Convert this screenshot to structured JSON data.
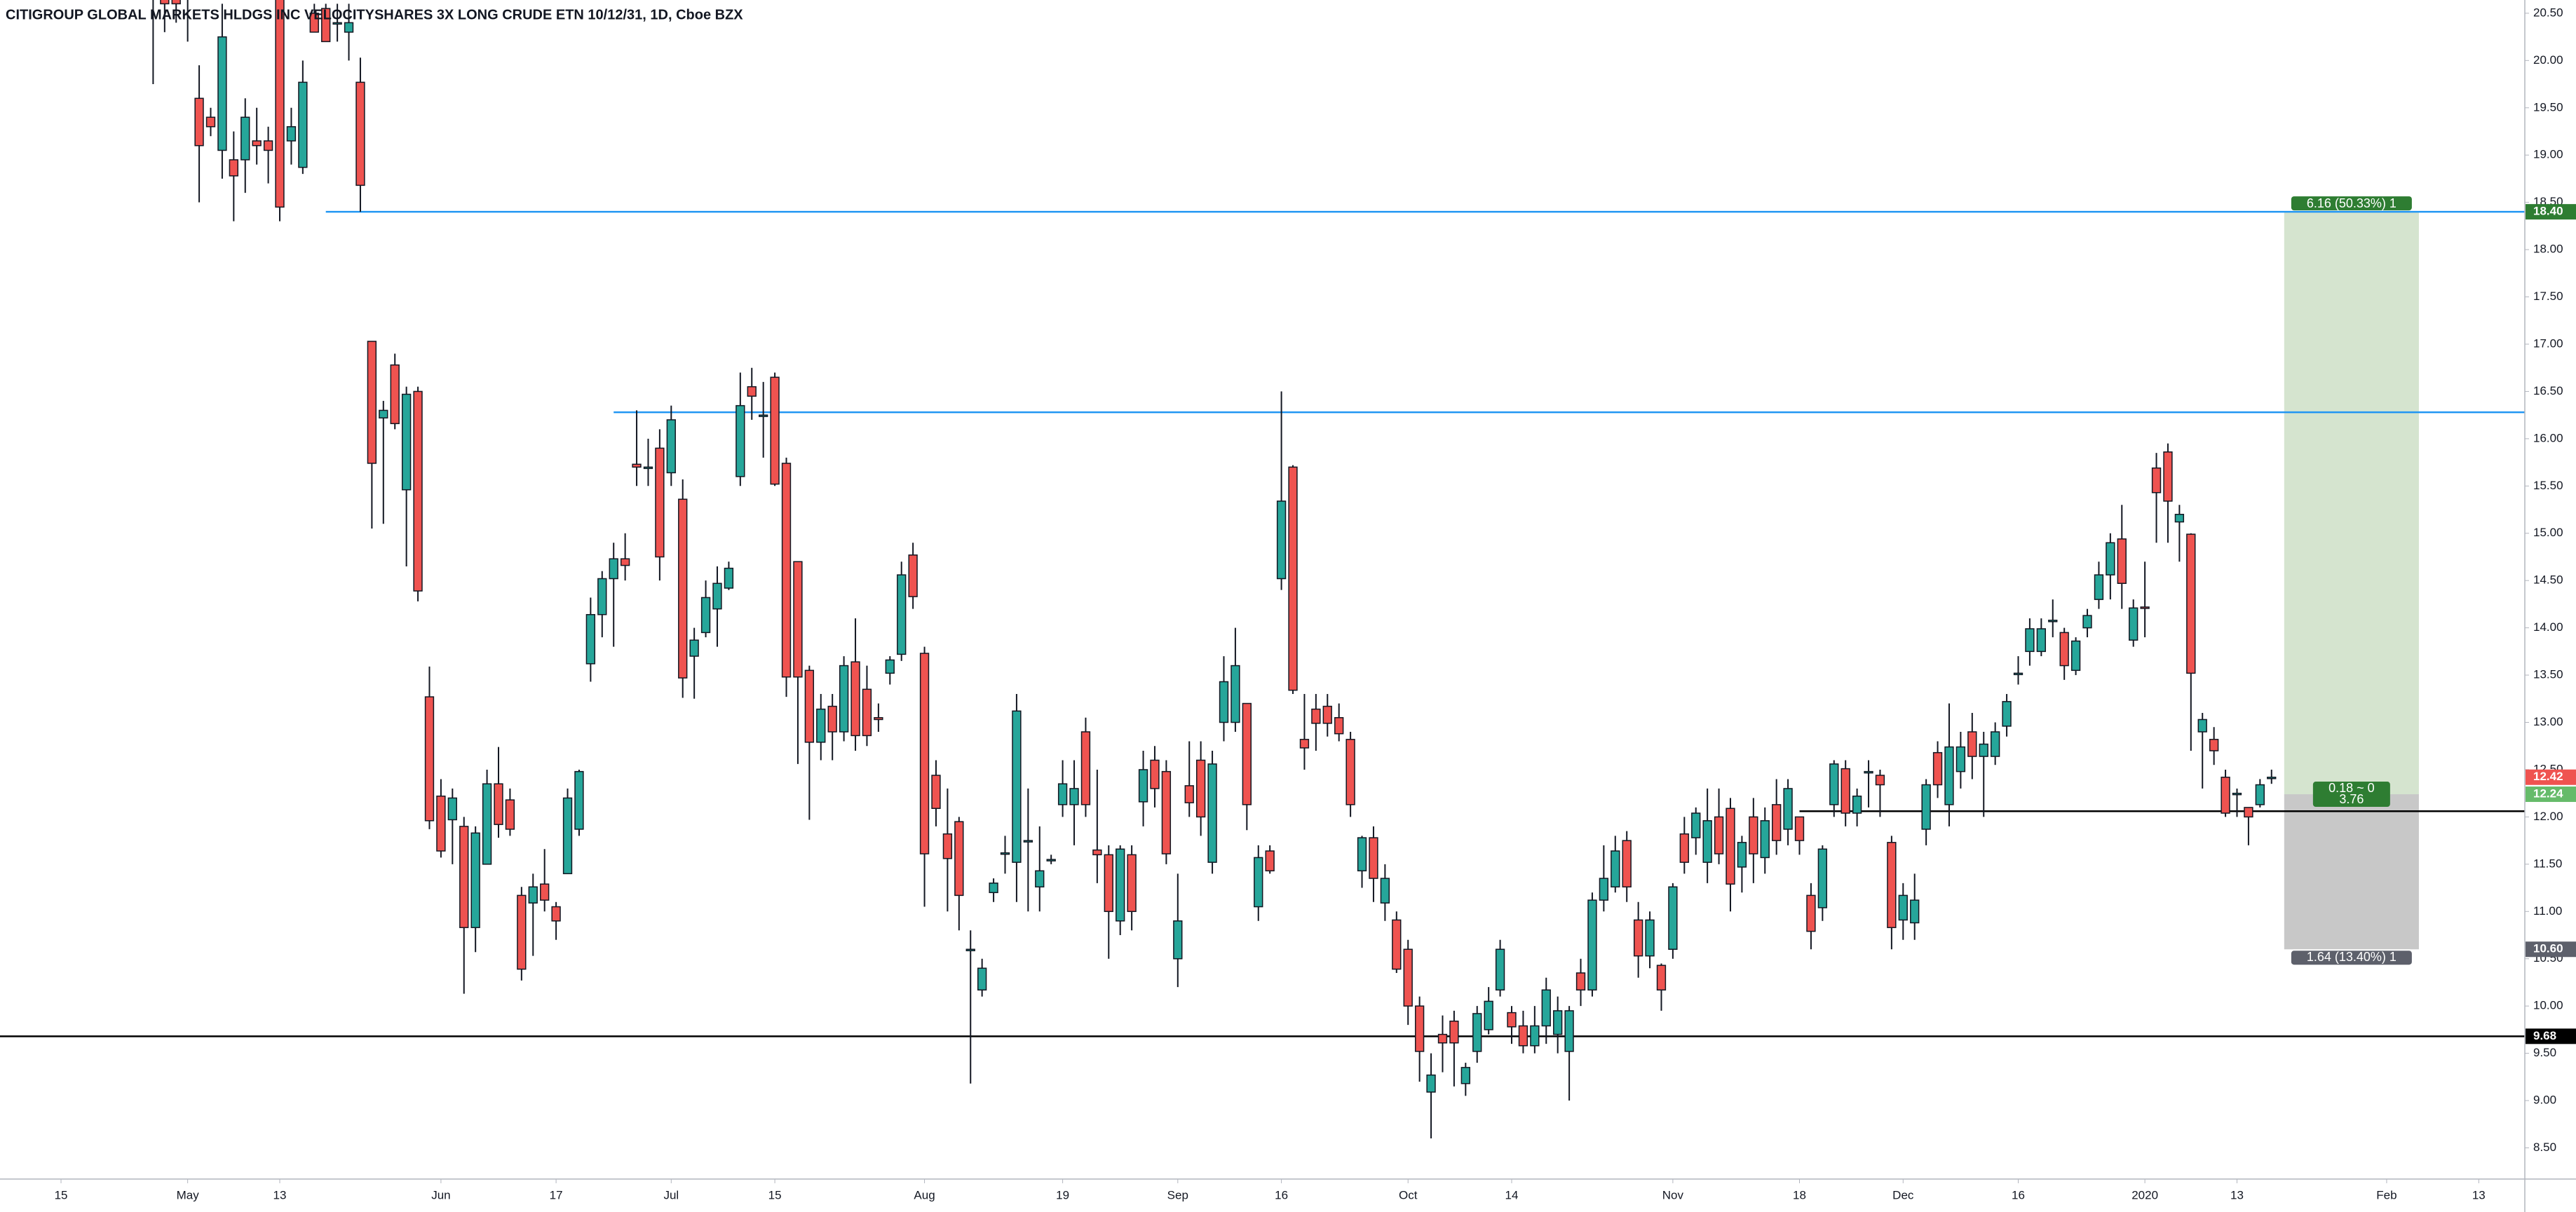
{
  "chart_data": {
    "type": "candlestick",
    "title": "CITIGROUP GLOBAL MARKETS HLDGS INC VELOCITYSHARES 3X LONG CRUDE ETN 10/12/31, 1D, Cboe BZX",
    "up_color": "#26a69a",
    "down_color": "#ef5350",
    "candles": {
      "open": [
        20.9,
        20.8,
        20.7,
        20.9,
        19.6,
        19.4,
        19.05,
        18.95,
        18.95,
        19.15,
        19.15,
        20.8,
        19.15,
        18.87,
        20.5,
        20.55,
        20.4,
        20.3,
        19.77,
        17.03,
        16.22,
        16.78,
        15.46,
        16.5,
        13.27,
        12.22,
        11.97,
        11.9,
        10.83,
        11.5,
        12.35,
        12.18,
        11.17,
        11.09,
        11.29,
        11.05,
        11.4,
        11.87,
        13.62,
        14.14,
        14.52,
        14.73,
        15.73,
        15.7,
        15.9,
        15.64,
        15.36,
        13.7,
        13.95,
        14.2,
        14.42,
        15.6,
        16.55,
        16.25,
        16.65,
        15.74,
        14.7,
        13.55,
        12.79,
        13.17,
        12.9,
        13.64,
        13.35,
        13.05,
        13.52,
        13.72,
        14.77,
        13.73,
        12.44,
        11.82,
        11.95,
        10.6,
        10.17,
        11.2,
        11.62,
        11.52,
        11.75,
        11.26,
        11.55,
        12.13,
        12.13,
        12.9,
        11.65,
        11.6,
        10.9,
        11.6,
        12.16,
        12.6,
        12.48,
        10.5,
        12.33,
        12.6,
        11.52,
        13.0,
        13.0,
        13.2,
        11.05,
        11.64,
        14.52,
        15.7,
        12.82,
        13.14,
        13.17,
        13.05,
        12.82,
        11.43,
        11.78,
        11.09,
        10.91,
        10.6,
        10.0,
        9.09,
        9.7,
        9.84,
        9.18,
        9.52,
        9.75,
        10.17,
        9.93,
        9.79,
        9.58,
        9.79,
        9.7,
        9.52,
        10.35,
        10.17,
        11.12,
        11.26,
        11.75,
        10.91,
        10.53,
        10.43,
        10.6,
        11.82,
        11.78,
        11.52,
        12.0,
        12.09,
        11.47,
        12.0,
        11.57,
        12.13,
        11.87,
        12.0,
        11.17,
        11.04,
        12.13,
        12.51,
        12.04,
        12.48,
        12.44,
        11.73,
        10.91,
        10.88,
        11.87,
        12.68,
        12.13,
        12.48,
        12.9,
        12.64,
        12.64,
        12.96,
        13.52,
        13.75,
        13.75,
        14.07,
        13.95,
        13.55,
        14.0,
        14.3,
        14.56,
        14.94,
        13.87,
        14.22,
        15.69,
        15.86,
        15.12,
        14.99,
        12.9,
        12.82,
        12.42,
        12.25,
        12.1,
        12.13,
        12.42
      ],
      "high": [
        21.0,
        21.0,
        21.0,
        21.0,
        19.95,
        19.5,
        20.6,
        19.25,
        19.6,
        19.5,
        19.3,
        21.0,
        19.5,
        20.0,
        20.6,
        20.6,
        20.6,
        20.6,
        20.03,
        17.03,
        16.4,
        16.9,
        16.55,
        16.55,
        13.59,
        12.4,
        12.3,
        12.0,
        11.9,
        12.5,
        12.74,
        12.3,
        11.26,
        11.4,
        11.66,
        11.1,
        12.3,
        12.5,
        14.32,
        14.6,
        14.9,
        15.0,
        16.3,
        16.0,
        16.1,
        16.35,
        15.57,
        14.0,
        14.5,
        14.65,
        14.7,
        16.7,
        16.75,
        16.6,
        16.7,
        15.8,
        14.7,
        13.6,
        13.3,
        13.3,
        13.7,
        14.1,
        13.6,
        13.2,
        13.7,
        14.7,
        14.9,
        13.8,
        12.6,
        12.3,
        12.0,
        10.8,
        10.5,
        11.35,
        11.8,
        13.3,
        12.3,
        11.9,
        11.6,
        12.6,
        12.6,
        13.05,
        12.5,
        11.7,
        11.7,
        11.7,
        12.7,
        12.75,
        12.6,
        11.4,
        12.8,
        12.8,
        12.7,
        13.7,
        14.0,
        13.2,
        11.7,
        11.7,
        16.5,
        15.72,
        13.3,
        13.3,
        13.3,
        13.2,
        12.9,
        11.8,
        11.9,
        11.5,
        11.0,
        10.7,
        10.1,
        9.5,
        9.9,
        9.95,
        9.4,
        10.0,
        10.2,
        10.7,
        10.0,
        9.95,
        10.0,
        10.3,
        10.1,
        10.0,
        10.5,
        11.2,
        11.7,
        11.8,
        11.85,
        11.1,
        11.0,
        10.45,
        11.3,
        12.0,
        12.1,
        12.3,
        12.3,
        12.2,
        11.8,
        12.2,
        12.1,
        12.4,
        12.4,
        12.0,
        11.3,
        11.7,
        12.6,
        12.6,
        12.3,
        12.6,
        12.5,
        11.8,
        11.3,
        11.4,
        12.4,
        12.8,
        13.2,
        12.9,
        13.1,
        12.9,
        13.0,
        13.3,
        13.7,
        14.1,
        14.1,
        14.3,
        14.0,
        13.9,
        14.2,
        14.7,
        15.0,
        15.3,
        14.3,
        14.7,
        15.85,
        15.95,
        15.3,
        15.0,
        13.1,
        12.95,
        12.5,
        12.3,
        12.1,
        12.4,
        12.5
      ],
      "low": [
        19.75,
        20.3,
        20.4,
        20.2,
        18.5,
        19.2,
        18.75,
        18.3,
        18.6,
        18.9,
        18.7,
        18.3,
        18.9,
        18.8,
        20.3,
        20.2,
        20.2,
        20.0,
        18.4,
        15.05,
        15.1,
        16.1,
        14.65,
        14.28,
        11.87,
        11.57,
        11.5,
        10.13,
        10.57,
        11.5,
        11.78,
        11.8,
        10.27,
        10.53,
        11.0,
        10.7,
        11.4,
        11.8,
        13.43,
        13.9,
        13.8,
        14.5,
        15.5,
        15.5,
        14.5,
        15.5,
        13.26,
        13.25,
        13.9,
        13.8,
        14.4,
        15.5,
        16.2,
        15.8,
        15.5,
        13.27,
        12.56,
        11.97,
        12.6,
        12.6,
        12.8,
        12.7,
        12.75,
        12.9,
        13.4,
        13.65,
        14.2,
        11.05,
        11.9,
        11.0,
        10.8,
        9.18,
        10.1,
        11.1,
        11.4,
        11.1,
        11.0,
        11.0,
        11.5,
        12.0,
        11.7,
        12.0,
        11.3,
        10.5,
        10.75,
        10.8,
        11.9,
        12.1,
        11.5,
        10.2,
        12.0,
        11.8,
        11.4,
        12.8,
        12.9,
        11.86,
        10.9,
        11.4,
        14.4,
        13.3,
        12.5,
        12.7,
        12.85,
        12.8,
        12.0,
        11.25,
        11.1,
        10.9,
        10.35,
        9.8,
        9.2,
        8.6,
        9.3,
        9.15,
        9.05,
        9.4,
        9.7,
        10.1,
        9.6,
        9.5,
        9.5,
        9.6,
        9.5,
        9.0,
        10.0,
        10.1,
        11.0,
        11.2,
        11.1,
        10.3,
        10.4,
        9.95,
        10.5,
        11.4,
        11.6,
        11.3,
        11.5,
        11.0,
        11.2,
        11.3,
        11.4,
        11.6,
        11.7,
        11.6,
        10.6,
        10.9,
        12.0,
        11.9,
        11.9,
        12.1,
        12.0,
        10.6,
        10.7,
        10.7,
        11.7,
        12.2,
        11.9,
        12.3,
        12.4,
        12.0,
        12.55,
        12.85,
        13.4,
        13.6,
        13.7,
        13.9,
        13.45,
        13.5,
        13.9,
        14.2,
        14.3,
        14.2,
        13.8,
        13.9,
        14.9,
        14.9,
        14.7,
        12.7,
        12.3,
        12.55,
        12.0,
        12.0,
        11.7,
        12.1,
        12.35
      ],
      "close": [
        20.7,
        20.6,
        20.6,
        20.7,
        19.1,
        19.3,
        20.25,
        18.78,
        19.4,
        19.1,
        19.05,
        18.45,
        19.3,
        19.77,
        20.3,
        20.2,
        20.4,
        20.4,
        18.68,
        15.74,
        16.3,
        16.16,
        16.47,
        14.39,
        11.96,
        11.64,
        12.2,
        10.83,
        11.83,
        12.35,
        11.92,
        11.87,
        10.39,
        11.26,
        11.12,
        10.9,
        12.2,
        12.48,
        14.14,
        14.52,
        14.73,
        14.66,
        15.7,
        15.7,
        14.75,
        16.2,
        13.47,
        13.87,
        14.32,
        14.47,
        14.63,
        16.35,
        16.45,
        16.25,
        15.52,
        13.48,
        13.48,
        12.79,
        13.14,
        12.9,
        13.6,
        12.86,
        12.86,
        13.03,
        13.66,
        14.56,
        14.33,
        11.61,
        12.09,
        11.56,
        11.17,
        10.6,
        10.4,
        11.3,
        11.62,
        13.12,
        11.75,
        11.43,
        11.55,
        12.35,
        12.3,
        12.13,
        11.6,
        11.0,
        11.66,
        11.0,
        12.5,
        12.3,
        11.61,
        10.9,
        12.15,
        12.0,
        12.56,
        13.43,
        13.6,
        12.13,
        11.57,
        11.43,
        15.34,
        13.34,
        12.73,
        12.99,
        12.99,
        12.88,
        12.13,
        11.78,
        11.35,
        11.35,
        10.39,
        10.0,
        9.52,
        9.27,
        9.61,
        9.61,
        9.35,
        9.92,
        10.05,
        10.6,
        9.78,
        9.58,
        9.79,
        10.17,
        9.95,
        9.95,
        10.17,
        11.12,
        11.35,
        11.64,
        11.26,
        10.53,
        10.91,
        10.17,
        11.26,
        11.52,
        12.04,
        11.96,
        11.61,
        11.29,
        11.73,
        11.61,
        11.96,
        11.75,
        12.3,
        11.75,
        10.79,
        11.66,
        12.56,
        12.04,
        12.22,
        12.48,
        12.34,
        10.83,
        11.17,
        11.12,
        12.34,
        12.34,
        12.74,
        12.74,
        12.64,
        12.77,
        12.9,
        13.22,
        13.52,
        13.99,
        13.99,
        14.08,
        13.6,
        13.86,
        14.13,
        14.56,
        14.9,
        14.47,
        14.21,
        14.21,
        15.43,
        15.34,
        15.2,
        13.52,
        13.03,
        12.7,
        12.04,
        12.25,
        12.0,
        12.34,
        12.42
      ]
    },
    "xlim": [
      -13.3,
      206
    ],
    "xticks": [
      {
        "value": -8,
        "label": "15"
      },
      {
        "value": 3,
        "label": "May"
      },
      {
        "value": 11,
        "label": "13"
      },
      {
        "value": 25,
        "label": "Jun"
      },
      {
        "value": 35,
        "label": "17"
      },
      {
        "value": 45,
        "label": "Jul"
      },
      {
        "value": 54,
        "label": "15"
      },
      {
        "value": 67,
        "label": "Aug"
      },
      {
        "value": 79,
        "label": "19"
      },
      {
        "value": 89,
        "label": "Sep"
      },
      {
        "value": 98,
        "label": "16"
      },
      {
        "value": 109,
        "label": "Oct"
      },
      {
        "value": 118,
        "label": "14"
      },
      {
        "value": 132,
        "label": "Nov"
      },
      {
        "value": 143,
        "label": "18"
      },
      {
        "value": 152,
        "label": "Dec"
      },
      {
        "value": 162,
        "label": "16"
      },
      {
        "value": 173,
        "label": "2020"
      },
      {
        "value": 181,
        "label": "13"
      },
      {
        "value": 194,
        "label": "Feb"
      },
      {
        "value": 202,
        "label": "13"
      }
    ],
    "ylim": [
      8.17,
      20.64
    ],
    "yticks": [
      {
        "value": 8.5,
        "label": "8.50"
      },
      {
        "value": 9,
        "label": "9.00"
      },
      {
        "value": 9.5,
        "label": "9.50"
      },
      {
        "value": 10,
        "label": "10.00"
      },
      {
        "value": 10.5,
        "label": "10.50"
      },
      {
        "value": 11,
        "label": "11.00"
      },
      {
        "value": 11.5,
        "label": "11.50"
      },
      {
        "value": 12,
        "label": "12.00"
      },
      {
        "value": 12.5,
        "label": "12.50"
      },
      {
        "value": 13,
        "label": "13.00"
      },
      {
        "value": 13.5,
        "label": "13.50"
      },
      {
        "value": 14,
        "label": "14.00"
      },
      {
        "value": 14.5,
        "label": "14.50"
      },
      {
        "value": 15,
        "label": "15.00"
      },
      {
        "value": 15.5,
        "label": "15.50"
      },
      {
        "value": 16,
        "label": "16.00"
      },
      {
        "value": 16.5,
        "label": "16.50"
      },
      {
        "value": 17,
        "label": "17.00"
      },
      {
        "value": 17.5,
        "label": "17.50"
      },
      {
        "value": 18,
        "label": "18.00"
      },
      {
        "value": 18.5,
        "label": "18.50"
      },
      {
        "value": 19,
        "label": "19.00"
      },
      {
        "value": 19.5,
        "label": "19.50"
      },
      {
        "value": 20,
        "label": "20.00"
      },
      {
        "value": 20.5,
        "label": "20.50"
      }
    ],
    "grid": false,
    "lines": [
      {
        "value": 18.4,
        "color": "#2196f3",
        "start": 15
      },
      {
        "value": 16.28,
        "color": "#2196f3",
        "start": 40
      },
      {
        "value": 12.06,
        "color": "#000000",
        "start": 143
      },
      {
        "value": 9.68,
        "color": "#000000"
      }
    ],
    "position": {
      "entry": 12.24,
      "target": 18.4,
      "stop": 10.6,
      "start": 185.1,
      "end": 196.8,
      "profit_color": "#d5e4cf",
      "loss_color": "#c8c8c8",
      "target_label": "6.16 (50.33%) 1",
      "entry_label": [
        "0.18 ~ 0",
        "3.76"
      ],
      "stop_label": "1.64 (13.40%) 1"
    },
    "price_labels": [
      {
        "value": 18.4,
        "label": "18.40",
        "color": "#2e7d32"
      },
      {
        "value": 12.42,
        "label": "12.42",
        "color": "#ef5350"
      },
      {
        "value": 12.24,
        "label": "12.24",
        "color": "#66bb6a"
      },
      {
        "value": 10.6,
        "label": "10.60",
        "color": "#5d606b"
      },
      {
        "value": 9.68,
        "label": "9.68",
        "color": "#000000"
      }
    ]
  }
}
